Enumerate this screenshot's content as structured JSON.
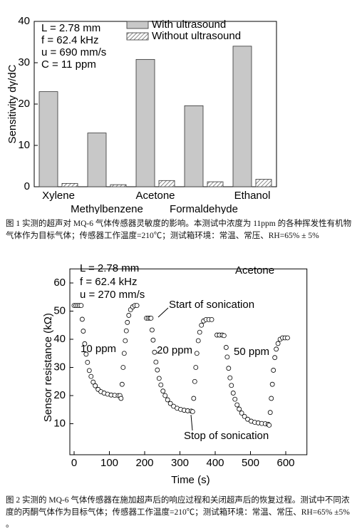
{
  "chart_data": [
    {
      "type": "bar",
      "ylabel": "Sensitivity dγ/dC",
      "categories": [
        "Xylene",
        "Methylbenzene",
        "Acetone",
        "Formaldehyde",
        "Ethanol"
      ],
      "series": [
        {
          "name": "With ultrasound",
          "color": "#c8c8c8",
          "values": [
            23,
            13,
            30.8,
            19.6,
            34
          ]
        },
        {
          "name": "Without ultrasound",
          "color": "hatch",
          "values": [
            0.8,
            0.5,
            1.5,
            1.2,
            1.8
          ]
        }
      ],
      "ylim": [
        0,
        40
      ],
      "yticks": [
        0,
        10,
        20,
        30,
        40
      ],
      "annotations": [
        "L = 2.78 mm",
        "f = 62.4 kHz",
        "u = 690 mm/s",
        "C = 11 ppm"
      ]
    },
    {
      "type": "scatter",
      "xlabel": "Time (s)",
      "ylabel": "Sensor resistance (kΩ)",
      "color": "#000000",
      "x": [
        0,
        5,
        10,
        15,
        20,
        23,
        26,
        30,
        34,
        38,
        43,
        48,
        54,
        60,
        68,
        76,
        85,
        95,
        105,
        115,
        125,
        130,
        133,
        136,
        139,
        142,
        145,
        148,
        151,
        155,
        160,
        166,
        172,
        178,
        190,
        205,
        210,
        215,
        218,
        221,
        224,
        228,
        232,
        236,
        241,
        246,
        252,
        258,
        265,
        273,
        282,
        292,
        302,
        312,
        322,
        332,
        336,
        339,
        342,
        345,
        348,
        352,
        356,
        361,
        367,
        374,
        382,
        390,
        398,
        405,
        412,
        420,
        425,
        431,
        434,
        438,
        442,
        446,
        451,
        456,
        462,
        468,
        475,
        483,
        492,
        502,
        512,
        522,
        532,
        542,
        550,
        553,
        556,
        559,
        562,
        565,
        569,
        573,
        578,
        584,
        591,
        598,
        605
      ],
      "values": [
        52,
        52,
        52,
        52,
        52,
        47.1,
        42.9,
        38.4,
        34.7,
        31.8,
        28.9,
        26.8,
        24.8,
        23.5,
        22.2,
        21.4,
        20.9,
        20.5,
        20.2,
        20.1,
        20,
        20,
        19,
        24,
        30,
        35,
        39.5,
        43,
        46,
        48.5,
        50.5,
        51.5,
        52,
        52,
        null,
        47.5,
        47.5,
        47.5,
        47.5,
        43.3,
        39.7,
        35.4,
        31.9,
        29.1,
        26.1,
        23.8,
        21.6,
        20,
        18.5,
        17.2,
        16.2,
        15.5,
        15.1,
        14.8,
        14.6,
        14.5,
        14.3,
        19,
        25,
        30,
        35,
        39.5,
        42.5,
        45,
        46.5,
        47,
        47,
        47,
        null,
        41.5,
        41.5,
        41.5,
        41.3,
        37.1,
        33.7,
        29.7,
        26.3,
        23.6,
        20.9,
        18.7,
        16.7,
        15.2,
        13.8,
        12.6,
        11.6,
        10.9,
        10.5,
        10.3,
        10.1,
        10,
        9.8,
        9.5,
        14,
        19,
        24,
        29,
        33.5,
        36.5,
        38.5,
        40,
        40.5,
        40.5,
        40.5
      ],
      "xlim": [
        0,
        660
      ],
      "xticks": [
        0,
        100,
        200,
        300,
        400,
        500,
        600
      ],
      "ylim": [
        0,
        65
      ],
      "yticks": [
        10,
        20,
        30,
        40,
        50,
        60
      ],
      "annotations": [
        "Acetone",
        "Start of sonication",
        "Stop of sonication",
        "10 ppm",
        "20 ppm",
        "50 ppm",
        "L = 2.78 mm",
        "f = 62.4 kHz",
        "u = 270 mm/s"
      ]
    }
  ],
  "captions": [
    "图 1 实测的超声对 MQ-6 气体传感器灵敏度的影响。本测试中浓度为 11ppm 的各种挥发性有机物气体作为目标气体；传感器工作温度=210℃；测试箱环境：常温、常压、RH=65% ± 5%",
    "图 2 实测的 MQ-6 气体传感器在施加超声后的响应过程和关闭超声后的恢复过程。测试中不同浓度的丙酮气体作为目标气体；传感器工作温度=210℃；测试箱环境：常温、常压、RH=65% ±5% 。"
  ]
}
